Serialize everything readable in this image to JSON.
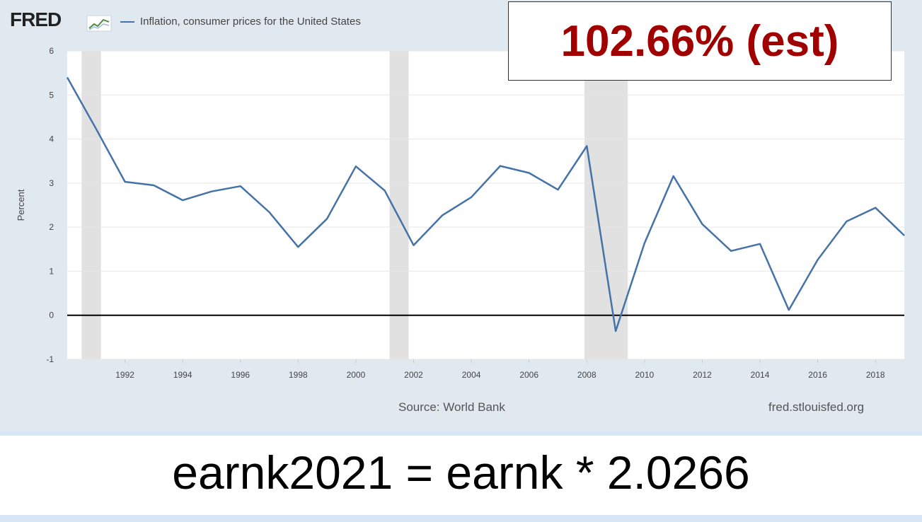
{
  "header": {
    "logo_text": "FRED",
    "legend_label": "Inflation, consumer prices for the United States",
    "estimate_label": "102.66% (est)"
  },
  "footer": {
    "source": "Source: World Bank",
    "site": "fred.stlouisfed.org"
  },
  "formula": "earnk2021 = earnk * 2.0266",
  "colors": {
    "line": "#4572a7",
    "recession": "#e1e1e1",
    "estimate_text": "#a00000",
    "panel": "#e1e9f0"
  },
  "chart_data": {
    "type": "line",
    "ylabel": "Percent",
    "xlabel": "",
    "ylim": [
      -1,
      6
    ],
    "xlim": [
      1990,
      2019
    ],
    "y_ticks": [
      -1,
      0,
      1,
      2,
      3,
      4,
      5,
      6
    ],
    "x_ticks": [
      1992,
      1994,
      1996,
      1998,
      2000,
      2002,
      2004,
      2006,
      2008,
      2010,
      2012,
      2014,
      2016,
      2018
    ],
    "grid": true,
    "recessions": [
      [
        1990.5,
        1991.17
      ],
      [
        2001.17,
        2001.83
      ],
      [
        2007.92,
        2009.42
      ]
    ],
    "series": [
      {
        "x": [
          1990,
          1991,
          1992,
          1993,
          1994,
          1995,
          1996,
          1997,
          1998,
          1999,
          2000,
          2001,
          2002,
          2003,
          2004,
          2005,
          2006,
          2007,
          2008,
          2009,
          2010,
          2011,
          2012,
          2013,
          2014,
          2015,
          2016,
          2017,
          2018,
          2019
        ],
        "values": [
          5.4,
          4.23,
          3.03,
          2.95,
          2.61,
          2.81,
          2.93,
          2.34,
          1.55,
          2.19,
          3.38,
          2.83,
          1.59,
          2.27,
          2.68,
          3.39,
          3.23,
          2.85,
          3.84,
          -0.36,
          1.64,
          3.16,
          2.07,
          1.46,
          1.62,
          0.12,
          1.26,
          2.13,
          2.44,
          1.81
        ]
      }
    ]
  }
}
